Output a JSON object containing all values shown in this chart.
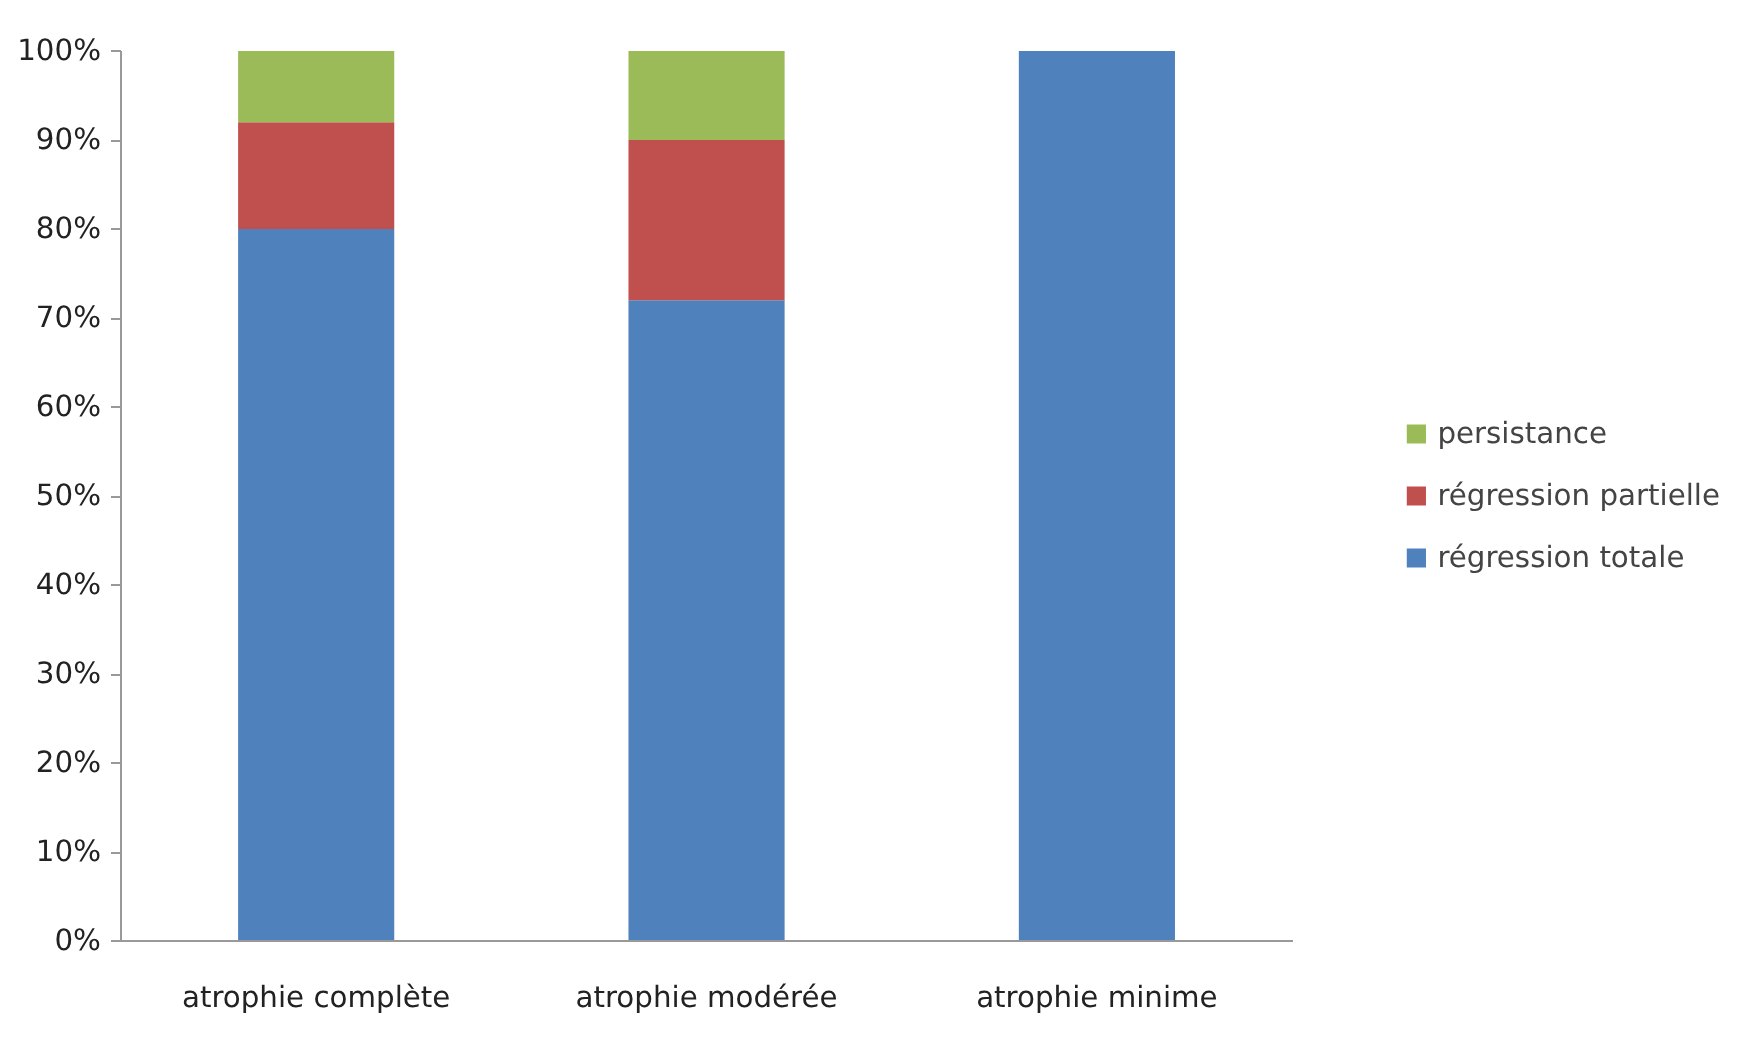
{
  "chart_data": {
    "type": "bar",
    "stacked": true,
    "categories": [
      "atrophie complète",
      "atrophie modérée",
      "atrophie minime"
    ],
    "series": [
      {
        "name": "régression totale",
        "color": "#4f81bd",
        "values": [
          80,
          72,
          100
        ]
      },
      {
        "name": "régression partielle",
        "color": "#c0504d",
        "values": [
          12,
          18,
          0
        ]
      },
      {
        "name": "persistance",
        "color": "#9bbb59",
        "values": [
          8,
          10,
          0
        ]
      }
    ],
    "ylim": [
      0,
      100
    ],
    "yticks": [
      {
        "value": 0,
        "label": "0%"
      },
      {
        "value": 10,
        "label": "10%"
      },
      {
        "value": 20,
        "label": "20%"
      },
      {
        "value": 30,
        "label": "30%"
      },
      {
        "value": 40,
        "label": "40%"
      },
      {
        "value": 50,
        "label": "50%"
      },
      {
        "value": 60,
        "label": "60%"
      },
      {
        "value": 70,
        "label": "70%"
      },
      {
        "value": 80,
        "label": "80%"
      },
      {
        "value": 90,
        "label": "90%"
      },
      {
        "value": 100,
        "label": "100%"
      }
    ],
    "grid": false,
    "legend": "right"
  }
}
